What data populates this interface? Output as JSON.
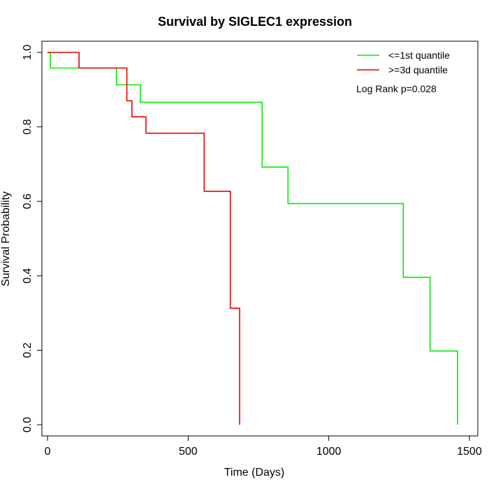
{
  "chart_data": {
    "type": "line",
    "title": "Survival by SIGLEC1 expression",
    "xlabel": "Time (Days)",
    "ylabel": "Survival Probability",
    "xlim": [
      -20,
      1530
    ],
    "ylim": [
      -0.03,
      1.03
    ],
    "xticks": [
      0,
      500,
      1000,
      1500
    ],
    "yticks": [
      0.0,
      0.2,
      0.4,
      0.6,
      0.8,
      1.0
    ],
    "xtick_labels": [
      "0",
      "500",
      "1000",
      "1500"
    ],
    "ytick_labels": [
      "0.0",
      "0.2",
      "0.4",
      "0.6",
      "0.8",
      "1.0"
    ],
    "grid": false,
    "legend_position": "top-right",
    "annotation": "Log Rank p=0.028",
    "series": [
      {
        "name": "<=1st quantile",
        "color": "#00ee00",
        "step": "post",
        "x": [
          0,
          10,
          245,
          330,
          763,
          855,
          1265,
          1360,
          1458
        ],
        "y": [
          1.0,
          0.958,
          0.913,
          0.866,
          0.692,
          0.594,
          0.396,
          0.198,
          0.0
        ]
      },
      {
        "name": ">=3d quantile",
        "color": "#ee0000",
        "step": "post",
        "x": [
          0,
          112,
          282,
          300,
          350,
          557,
          650,
          683
        ],
        "y": [
          1.0,
          0.958,
          0.87,
          0.827,
          0.783,
          0.627,
          0.313,
          0.0
        ]
      }
    ]
  }
}
